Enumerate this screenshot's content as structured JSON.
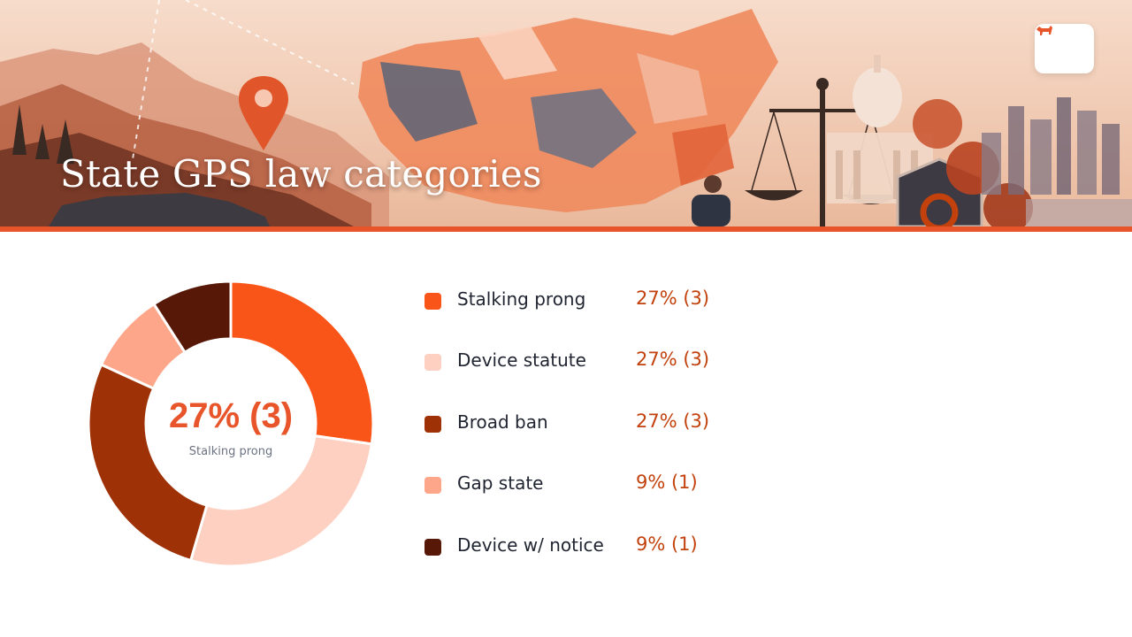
{
  "slide": {
    "title": "State GPS law categories"
  },
  "logo": {
    "icon": "dog-icon",
    "color": "#e8552a"
  },
  "center": {
    "value": "27% (3)",
    "label": "Stalking prong"
  },
  "colors": {
    "accent": "#e8552a",
    "value_text": "#c2410c",
    "center_label": "#6b7280"
  },
  "chart_data": {
    "type": "pie",
    "donut": true,
    "categories": [
      "Stalking prong",
      "Device statute",
      "Broad ban",
      "Gap state",
      "Device w/ notice"
    ],
    "values": [
      3,
      3,
      3,
      1,
      1
    ],
    "value_labels": [
      "27% (3)",
      "27% (3)",
      "27% (3)",
      "9% (1)",
      "9% (1)"
    ],
    "colors": [
      "#fa5519",
      "#fdd0c1",
      "#9e3105",
      "#fda68a",
      "#571808"
    ],
    "legend": "right"
  }
}
